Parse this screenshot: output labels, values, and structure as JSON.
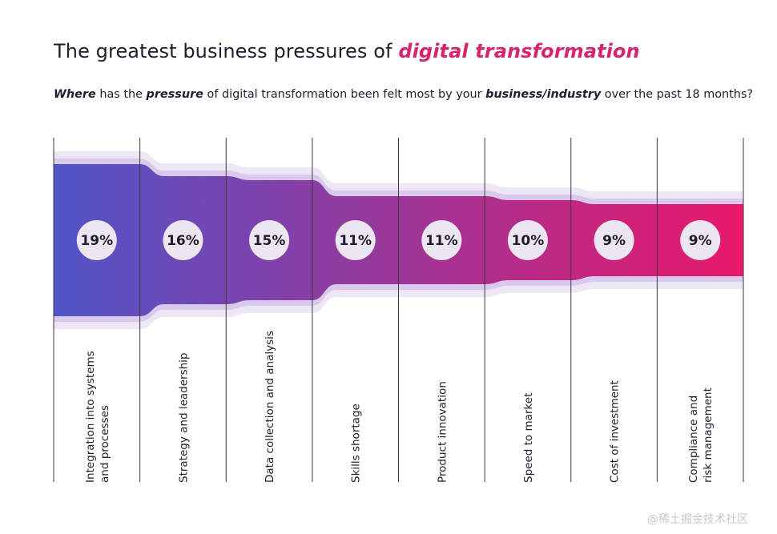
{
  "header": {
    "title_main": "The greatest business pressures of ",
    "title_highlight": "digital transformation",
    "subtitle": {
      "w1": "Where",
      "t1": " has the ",
      "w2": "pressure",
      "t2": " of digital transformation been felt most by your ",
      "w3": "business/industry",
      "t3": " over the past 18 months?"
    }
  },
  "chart_data": {
    "type": "area",
    "title": "The greatest business pressures of digital transformation",
    "categories": [
      [
        "Integration into systems",
        "and processes"
      ],
      [
        "Strategy and leadership"
      ],
      [
        "Data collection and analysis"
      ],
      [
        "Skills shortage"
      ],
      [
        "Product innovation"
      ],
      [
        "Speed to market"
      ],
      [
        "Cost of investment"
      ],
      [
        "Compliance and",
        "risk management"
      ]
    ],
    "values": [
      19,
      16,
      15,
      11,
      11,
      10,
      9,
      9
    ],
    "value_labels": [
      "19%",
      "16%",
      "15%",
      "11%",
      "11%",
      "10%",
      "9%",
      "9%"
    ],
    "unit": "%",
    "colors": {
      "start": "#5055c8",
      "end": "#e8186a",
      "band_outer": "#ede6f4",
      "band_mid": "#d9c9ec",
      "divider": "#3a3a3a",
      "label_circle": "#ece6f0"
    }
  },
  "watermark": "@稀土掘金技术社区"
}
